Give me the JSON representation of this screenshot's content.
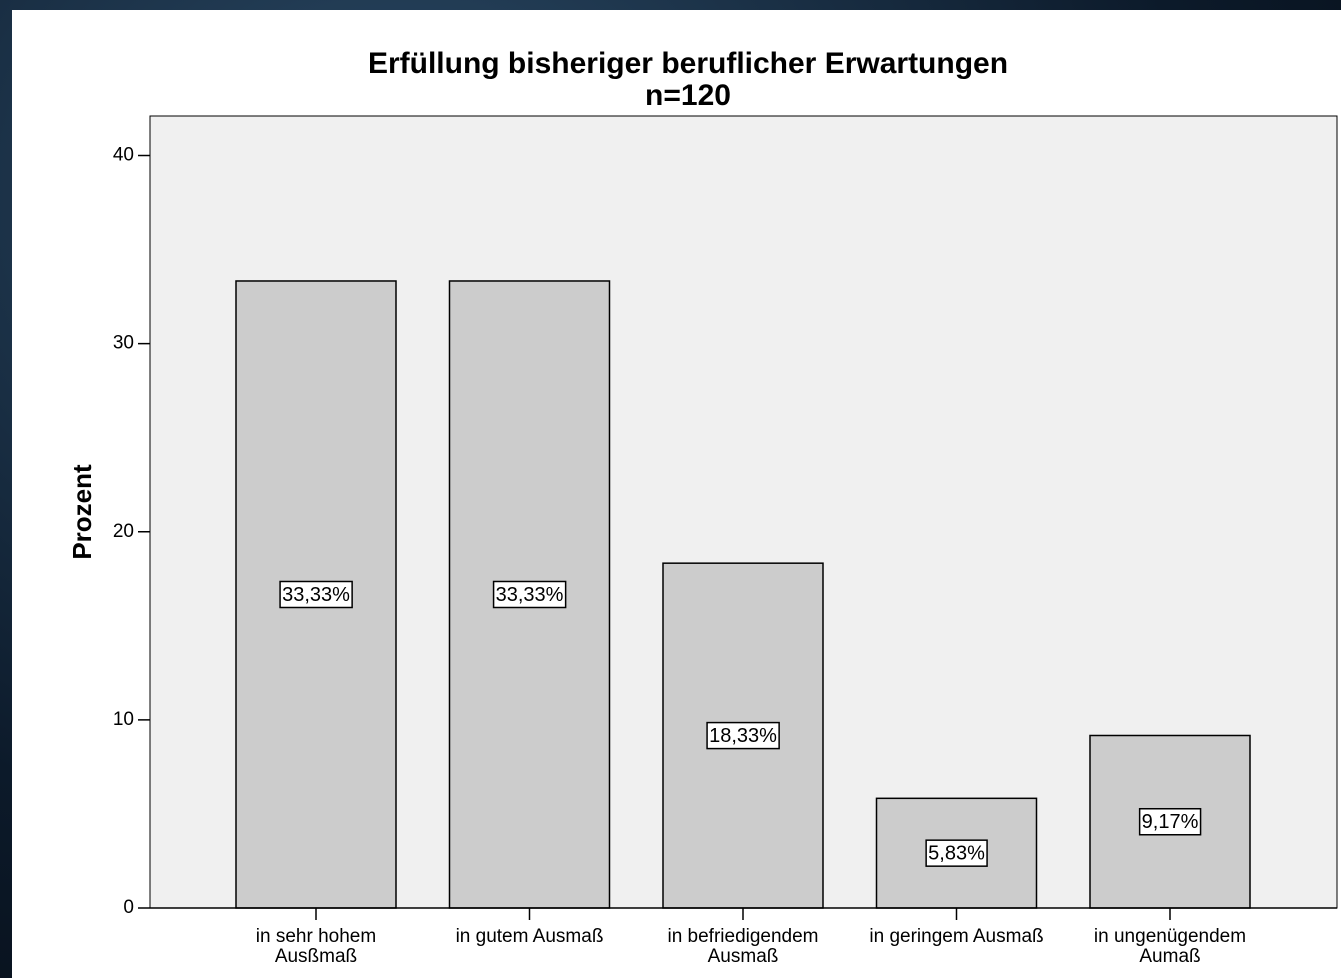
{
  "chart_data": {
    "type": "bar",
    "title": "Erfüllung bisheriger beruflicher Erwartungen",
    "subtitle": "n=120",
    "y_label": "Prozent",
    "categories": [
      [
        "in sehr hohem",
        "Ausßmaß"
      ],
      [
        "in gutem Ausmaß"
      ],
      [
        "in befriedigendem",
        "Ausmaß"
      ],
      [
        "in geringem Ausmaß"
      ],
      [
        "in ungenügendem",
        "Aumaß"
      ]
    ],
    "values": [
      33.33,
      33.33,
      18.33,
      5.83,
      9.17
    ],
    "value_labels": [
      "33,33%",
      "33,33%",
      "18,33%",
      "5,83%",
      "9,17%"
    ],
    "color": "#cccccc",
    "ylim": [
      0,
      42.1
    ],
    "yticks": [
      0,
      10,
      20,
      30,
      40
    ],
    "grid": false
  }
}
